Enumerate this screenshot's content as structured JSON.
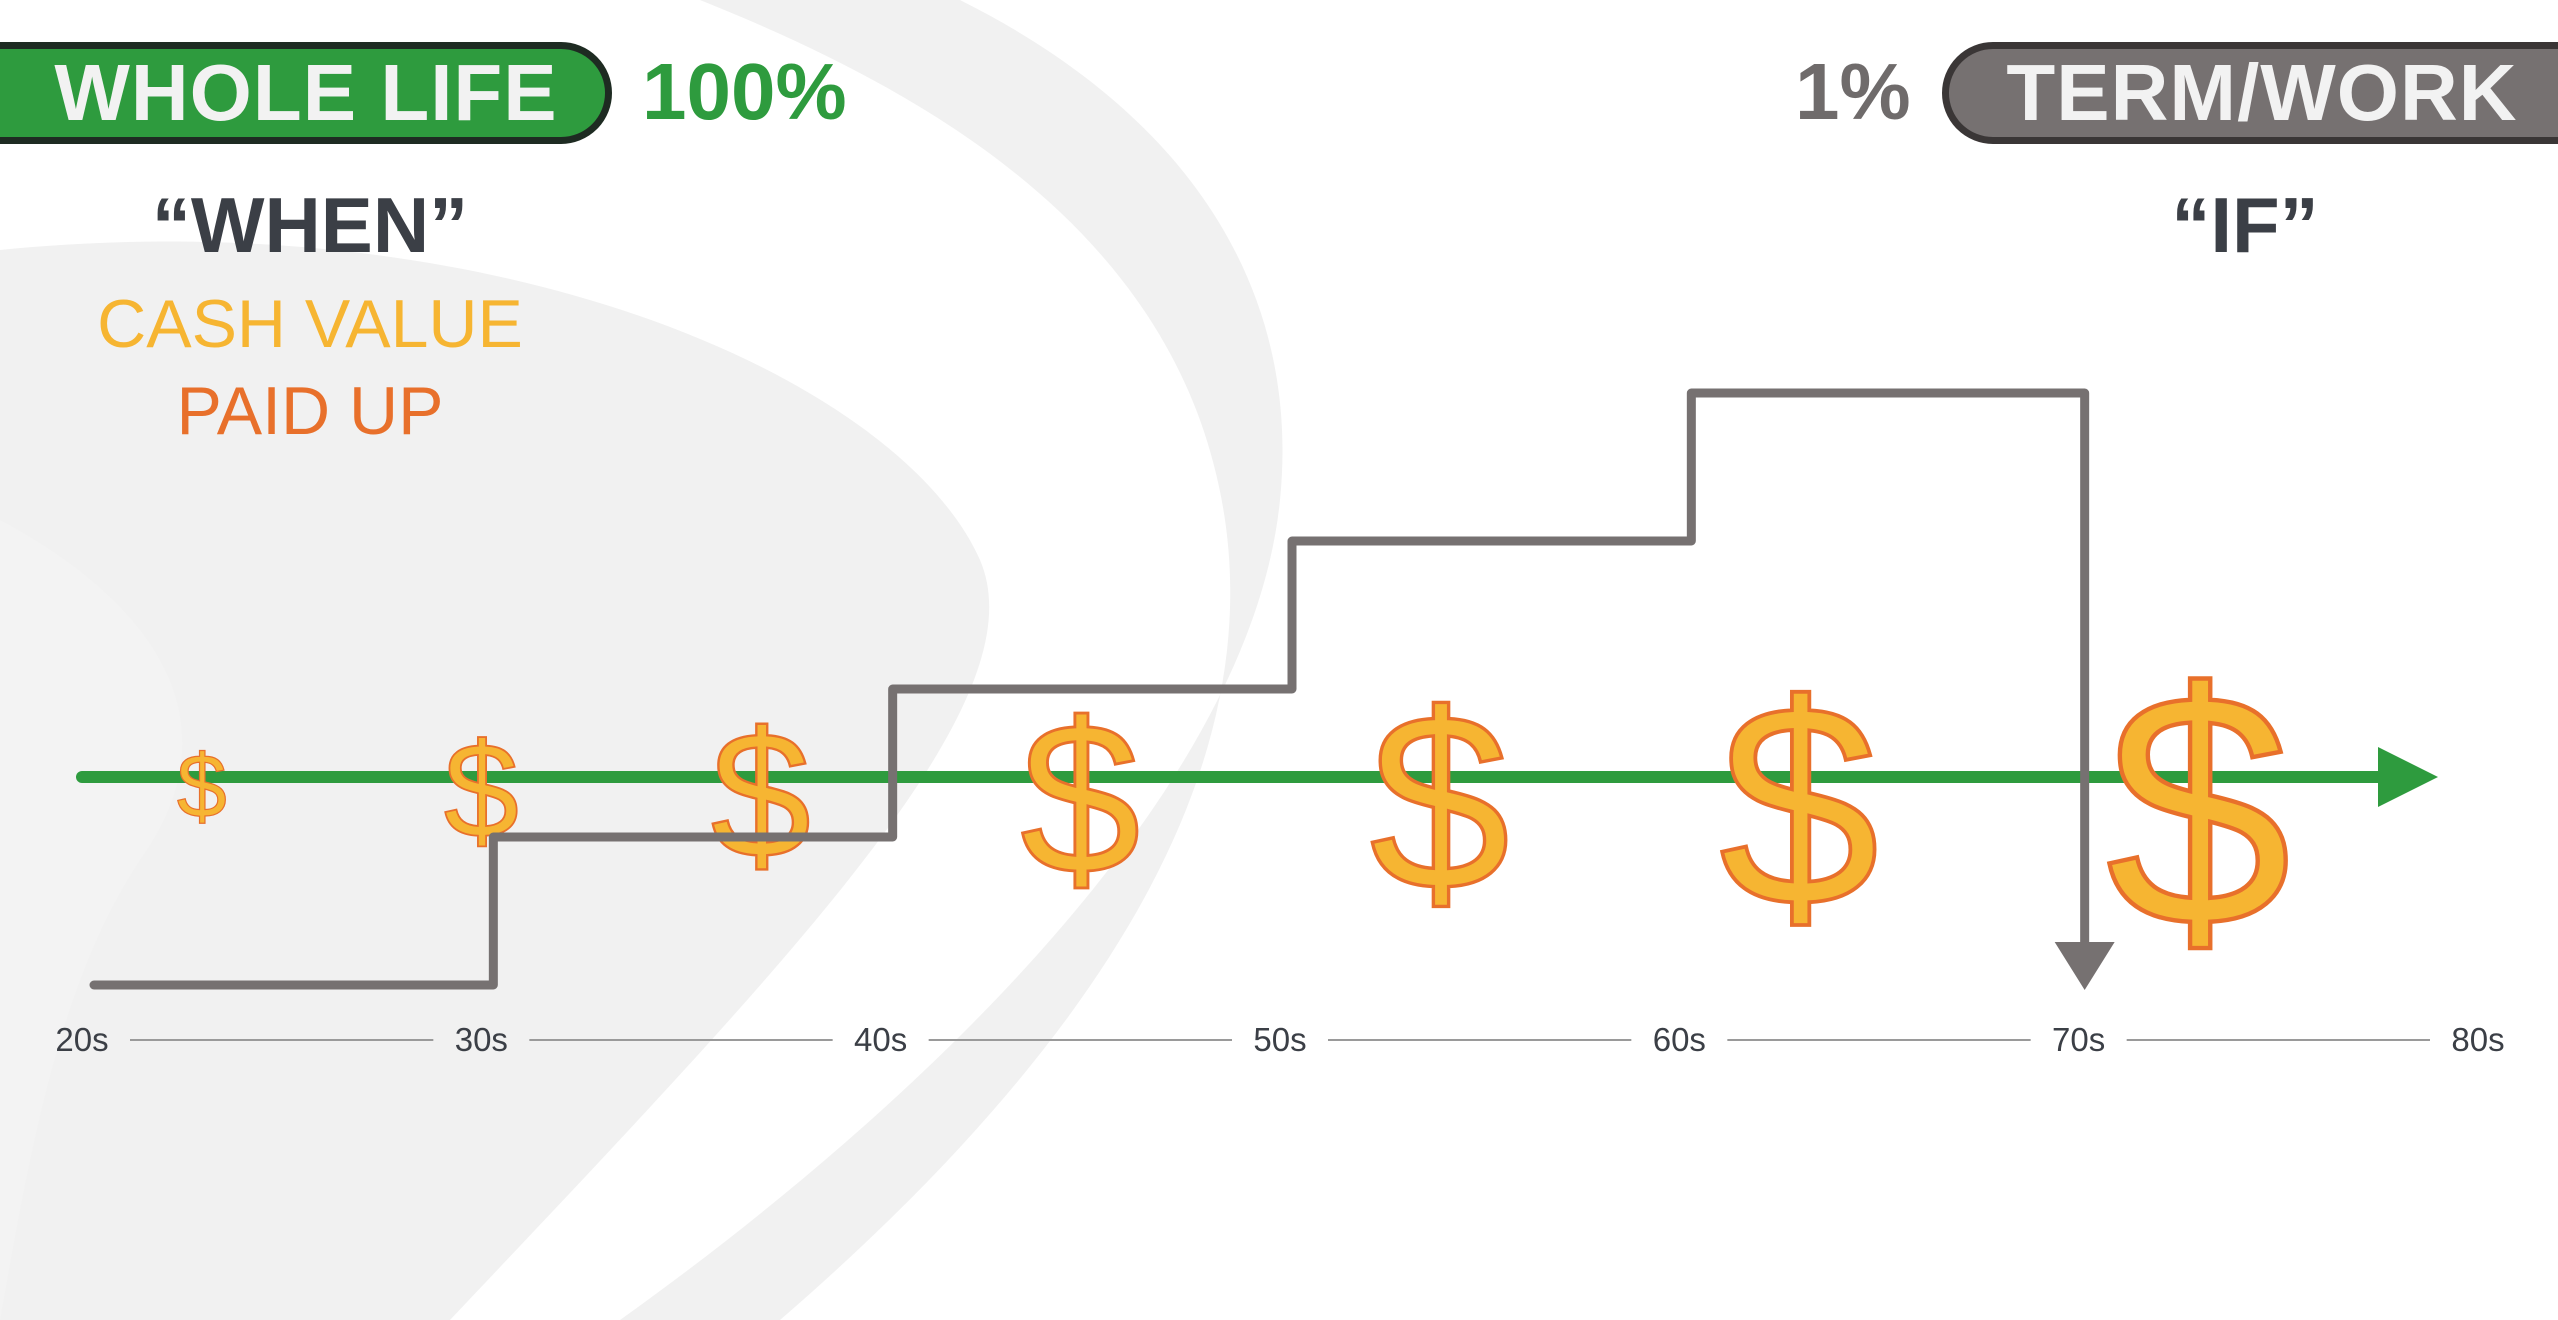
{
  "left_panel": {
    "badge": "WHOLE LIFE",
    "percent": "100%",
    "question": "“WHEN”",
    "line1": "CASH VALUE",
    "line2": "PAID UP"
  },
  "right_panel": {
    "badge": "TERM/WORK",
    "percent": "1%",
    "question": "“IF”"
  },
  "colors": {
    "green": "#2e9b3e",
    "gray": "#767171",
    "gold": "#f6b532",
    "orange": "#e8702b"
  },
  "chart_data": {
    "type": "line",
    "x_ticks": [
      "20s",
      "30s",
      "40s",
      "50s",
      "60s",
      "70s",
      "80s"
    ],
    "step_line": {
      "steps": [
        {
          "from": "20s",
          "to": "30s",
          "level": 1
        },
        {
          "from": "30s",
          "to": "40s",
          "level": 2
        },
        {
          "from": "40s",
          "to": "50s",
          "level": 3
        },
        {
          "from": "50s",
          "to": "60s",
          "level": 4
        },
        {
          "from": "60s",
          "to": "70s",
          "level": 5
        }
      ],
      "drop_at": "70s",
      "color": "#767171"
    },
    "growth_arrow": {
      "from": "20s",
      "to": "80s",
      "color": "#2e9b3e"
    },
    "dollar_symbols": [
      {
        "label": "$",
        "x": 0.3,
        "size": 1.0
      },
      {
        "label": "$",
        "x": 1.0,
        "size": 1.5
      },
      {
        "label": "$",
        "x": 1.7,
        "size": 2.0
      },
      {
        "label": "$",
        "x": 2.5,
        "size": 2.4
      },
      {
        "label": "$",
        "x": 3.4,
        "size": 2.8
      },
      {
        "label": "$",
        "x": 4.3,
        "size": 3.2
      },
      {
        "label": "$",
        "x": 5.3,
        "size": 3.7
      }
    ]
  }
}
